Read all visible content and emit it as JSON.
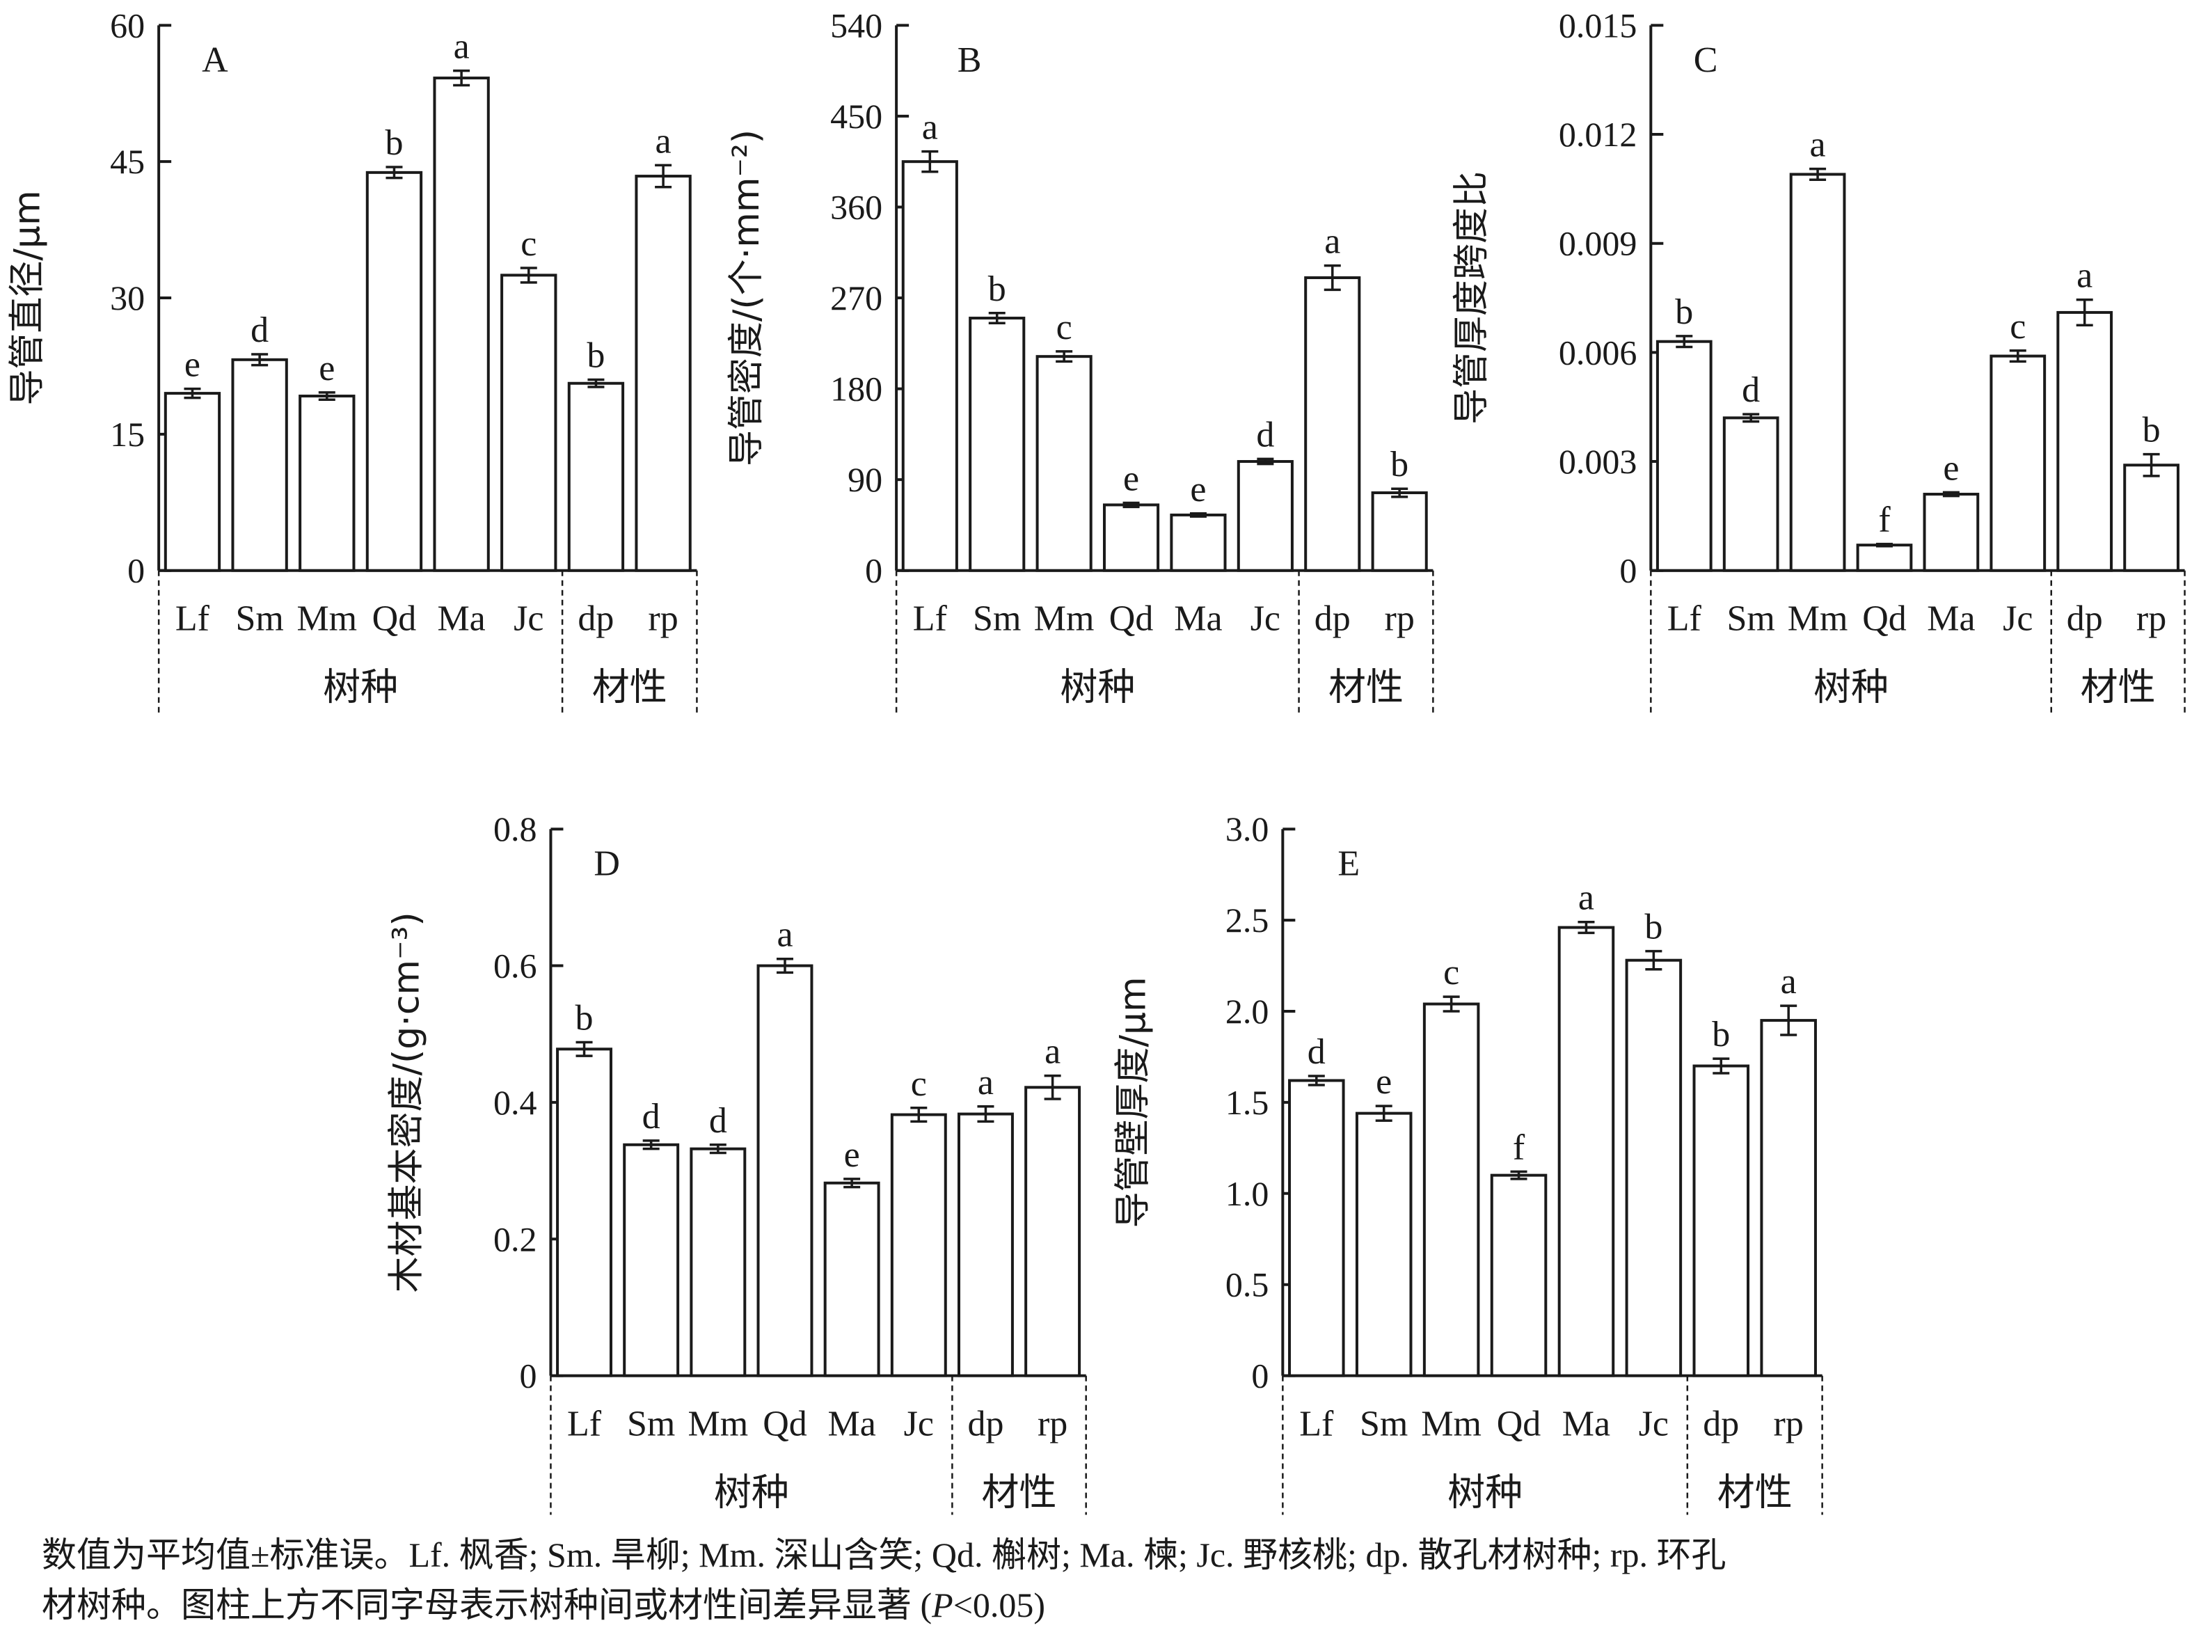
{
  "chart_data": [
    {
      "type": "bar",
      "panel": "A",
      "ylabel": "导管直径/μm",
      "ylim": [
        0,
        60
      ],
      "yticks": [
        "0",
        "15",
        "30",
        "45",
        "60"
      ],
      "yticks_values": [
        0,
        15,
        30,
        45,
        60
      ],
      "categories": [
        "Lf",
        "Sm",
        "Mm",
        "Qd",
        "Ma",
        "Jc",
        "dp",
        "rp"
      ],
      "values": [
        19.5,
        23.2,
        19.2,
        43.8,
        54.2,
        32.5,
        20.6,
        43.4
      ],
      "errors": [
        0.5,
        0.6,
        0.4,
        0.6,
        0.8,
        0.8,
        0.4,
        1.2
      ],
      "letters": [
        "e",
        "d",
        "e",
        "b",
        "a",
        "c",
        "b",
        "a"
      ],
      "groups": [
        {
          "label": "树种",
          "count": 6
        },
        {
          "label": "材性",
          "count": 2
        }
      ]
    },
    {
      "type": "bar",
      "panel": "B",
      "ylabel": "导管密度/(个·mm⁻²)",
      "ylim": [
        0,
        540
      ],
      "yticks": [
        "0",
        "90",
        "180",
        "270",
        "360",
        "450",
        "540"
      ],
      "yticks_values": [
        0,
        90,
        180,
        270,
        360,
        450,
        540
      ],
      "categories": [
        "Lf",
        "Sm",
        "Mm",
        "Qd",
        "Ma",
        "Jc",
        "dp",
        "rp"
      ],
      "values": [
        405,
        250,
        212,
        65,
        55,
        108,
        290,
        77
      ],
      "errors": [
        10,
        5,
        5,
        2,
        1.5,
        2.5,
        12,
        4
      ],
      "letters": [
        "a",
        "b",
        "c",
        "e",
        "e",
        "d",
        "a",
        "b"
      ],
      "groups": [
        {
          "label": "树种",
          "count": 6
        },
        {
          "label": "材性",
          "count": 2
        }
      ]
    },
    {
      "type": "bar",
      "panel": "C",
      "ylabel": "导管厚度跨度比",
      "ylim": [
        0,
        0.015
      ],
      "yticks": [
        "0",
        "0.003",
        "0.006",
        "0.009",
        "0.012",
        "0.015"
      ],
      "yticks_values": [
        0,
        0.003,
        0.006,
        0.009,
        0.012,
        0.015
      ],
      "categories": [
        "Lf",
        "Sm",
        "Mm",
        "Qd",
        "Ma",
        "Jc",
        "dp",
        "rp"
      ],
      "values": [
        0.0063,
        0.0042,
        0.0109,
        0.0007,
        0.0021,
        0.0059,
        0.0071,
        0.0029
      ],
      "errors": [
        0.00015,
        0.0001,
        0.00015,
        3e-05,
        5e-05,
        0.00015,
        0.00035,
        0.0003
      ],
      "letters": [
        "b",
        "d",
        "a",
        "f",
        "e",
        "c",
        "a",
        "b"
      ],
      "groups": [
        {
          "label": "树种",
          "count": 6
        },
        {
          "label": "材性",
          "count": 2
        }
      ]
    },
    {
      "type": "bar",
      "panel": "D",
      "ylabel": "木材基本密度/(g·cm⁻³)",
      "ylim": [
        0,
        0.8
      ],
      "yticks": [
        "0",
        "0.2",
        "0.4",
        "0.6",
        "0.8"
      ],
      "yticks_values": [
        0,
        0.2,
        0.4,
        0.6,
        0.8
      ],
      "categories": [
        "Lf",
        "Sm",
        "Mm",
        "Qd",
        "Ma",
        "Jc",
        "dp",
        "rp"
      ],
      "values": [
        0.478,
        0.338,
        0.332,
        0.6,
        0.282,
        0.382,
        0.383,
        0.422
      ],
      "errors": [
        0.01,
        0.006,
        0.006,
        0.01,
        0.006,
        0.01,
        0.011,
        0.017
      ],
      "letters": [
        "b",
        "d",
        "d",
        "a",
        "e",
        "c",
        "a",
        "a"
      ],
      "groups": [
        {
          "label": "树种",
          "count": 6
        },
        {
          "label": "材性",
          "count": 2
        }
      ]
    },
    {
      "type": "bar",
      "panel": "E",
      "ylabel": "导管壁厚度/μm",
      "ylim": [
        0,
        3.0
      ],
      "yticks": [
        "0",
        "0.5",
        "1.0",
        "1.5",
        "2.0",
        "2.5",
        "3.0"
      ],
      "yticks_values": [
        0,
        0.5,
        1.0,
        1.5,
        2.0,
        2.5,
        3.0
      ],
      "categories": [
        "Lf",
        "Sm",
        "Mm",
        "Qd",
        "Ma",
        "Jc",
        "dp",
        "rp"
      ],
      "values": [
        1.62,
        1.44,
        2.04,
        1.1,
        2.46,
        2.28,
        1.7,
        1.95
      ],
      "errors": [
        0.025,
        0.04,
        0.04,
        0.02,
        0.03,
        0.05,
        0.04,
        0.08
      ],
      "letters": [
        "d",
        "e",
        "c",
        "f",
        "a",
        "b",
        "b",
        "a"
      ],
      "groups": [
        {
          "label": "树种",
          "count": 6
        },
        {
          "label": "材性",
          "count": 2
        }
      ]
    }
  ],
  "caption": {
    "line1": "数值为平均值±标准误。Lf. 枫香; Sm. 旱柳; Mm. 深山含笑; Qd. 槲树; Ma. 楝; Jc. 野核桃; dp. 散孔材树种; rp. 环孔",
    "line2_prefix": "材树种。图柱上方不同字母表示树种间或材性间差异显著 (",
    "line2_italic": "P",
    "line2_suffix": "<0.05)"
  }
}
